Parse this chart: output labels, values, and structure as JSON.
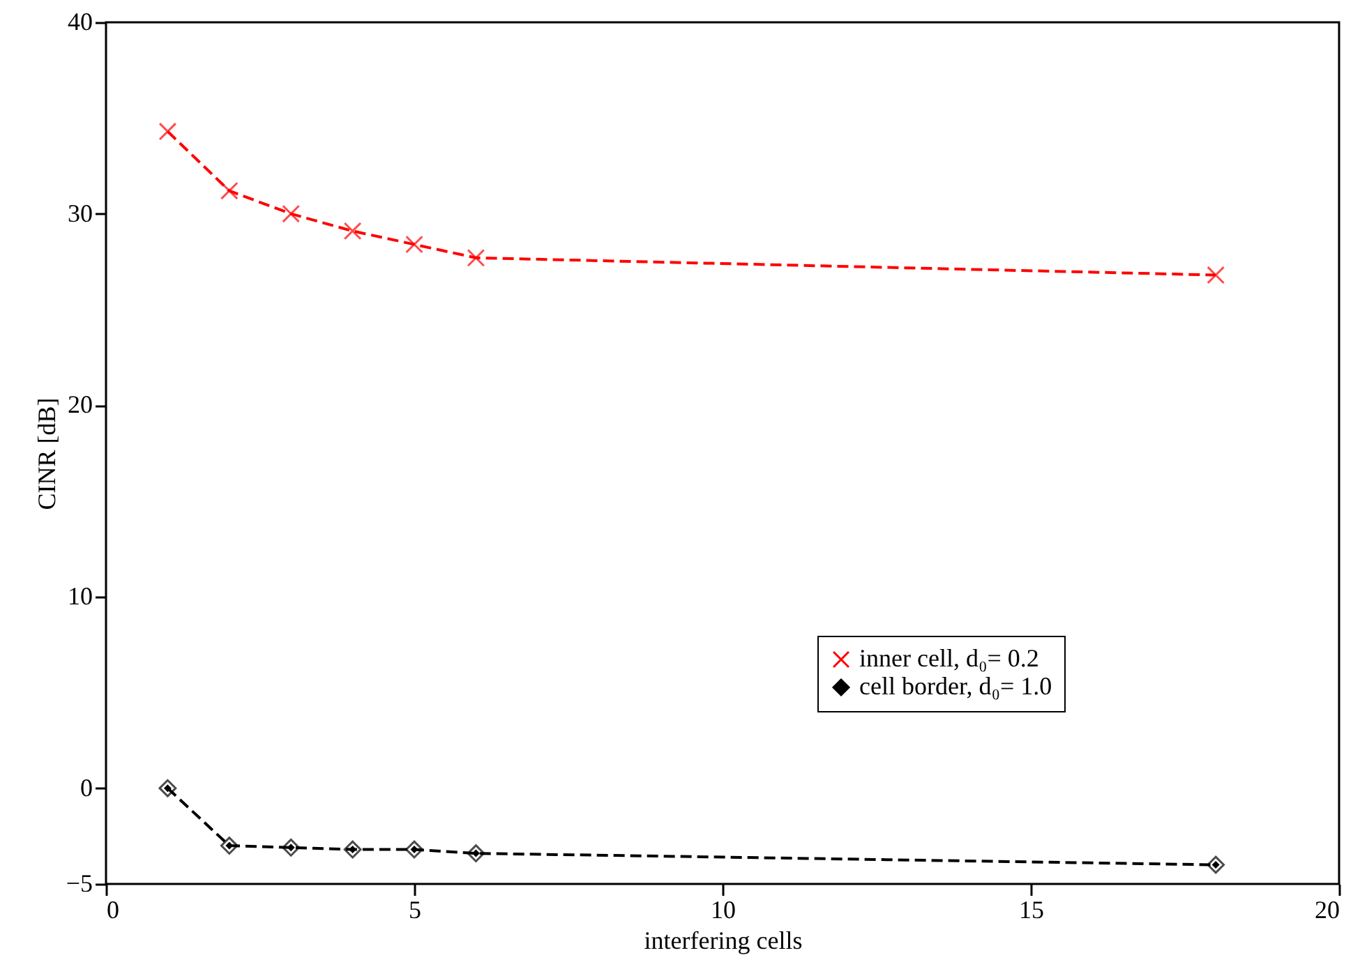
{
  "chart_data": {
    "type": "line",
    "xlabel": "interfering cells",
    "ylabel": "CINR [dB]",
    "xlim": [
      0,
      20
    ],
    "ylim": [
      -5,
      40
    ],
    "xticks": [
      0,
      5,
      10,
      15,
      20
    ],
    "yticks": [
      -5,
      0,
      10,
      20,
      30,
      40
    ],
    "grid": false,
    "legend": "bottom right",
    "line_style": "dashed",
    "series": [
      {
        "name": "inner cell, d₀= 0.2",
        "color": "#ff0000",
        "marker": "cross",
        "x": [
          1,
          2,
          3,
          4,
          5,
          6,
          18
        ],
        "values": [
          34.3,
          31.2,
          30.0,
          29.1,
          28.4,
          27.7,
          26.8
        ]
      },
      {
        "name": "cell border, d₀= 1.0",
        "color": "#000000",
        "marker": "diamond",
        "x": [
          1,
          2,
          3,
          4,
          5,
          6,
          18
        ],
        "values": [
          0.0,
          -3.0,
          -3.1,
          -3.2,
          -3.2,
          -3.4,
          -4.0
        ]
      }
    ]
  }
}
